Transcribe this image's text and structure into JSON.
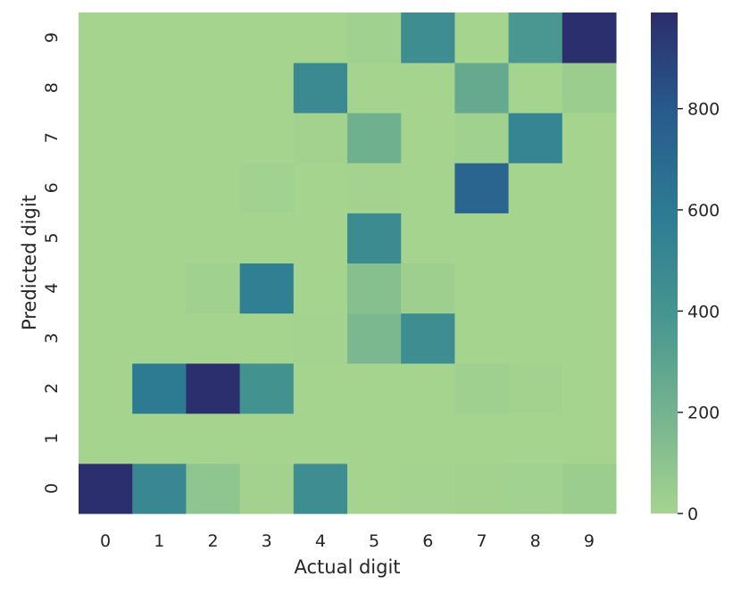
{
  "chart_data": {
    "type": "heatmap",
    "title": "",
    "xlabel": "Actual digit",
    "ylabel": "Predicted digit",
    "x_categories": [
      "0",
      "1",
      "2",
      "3",
      "4",
      "5",
      "6",
      "7",
      "8",
      "9"
    ],
    "y_categories": [
      "0",
      "1",
      "2",
      "3",
      "4",
      "5",
      "6",
      "7",
      "8",
      "9"
    ],
    "y_order": "bottom-to-top",
    "values": [
      [
        980,
        500,
        90,
        10,
        450,
        0,
        5,
        10,
        15,
        40
      ],
      [
        0,
        0,
        0,
        0,
        0,
        0,
        0,
        0,
        0,
        0
      ],
      [
        0,
        600,
        980,
        420,
        0,
        0,
        0,
        25,
        10,
        0
      ],
      [
        0,
        0,
        0,
        0,
        5,
        170,
        460,
        0,
        0,
        0
      ],
      [
        0,
        0,
        20,
        560,
        0,
        120,
        30,
        0,
        0,
        0
      ],
      [
        0,
        0,
        0,
        0,
        0,
        470,
        0,
        0,
        0,
        0
      ],
      [
        0,
        0,
        0,
        15,
        0,
        5,
        0,
        730,
        0,
        0
      ],
      [
        0,
        0,
        0,
        0,
        10,
        220,
        0,
        20,
        520,
        0
      ],
      [
        0,
        0,
        0,
        0,
        480,
        0,
        0,
        260,
        0,
        40
      ],
      [
        0,
        0,
        0,
        0,
        0,
        20,
        460,
        0,
        380,
        980
      ]
    ],
    "colorbar": {
      "cmap": "crest",
      "vmin": 0,
      "vmax": 990,
      "ticks": [
        0,
        200,
        400,
        600,
        800
      ],
      "tick_labels": [
        "0",
        "200",
        "400",
        "600",
        "800"
      ]
    },
    "grid": false,
    "legend": "colorbar-right"
  }
}
